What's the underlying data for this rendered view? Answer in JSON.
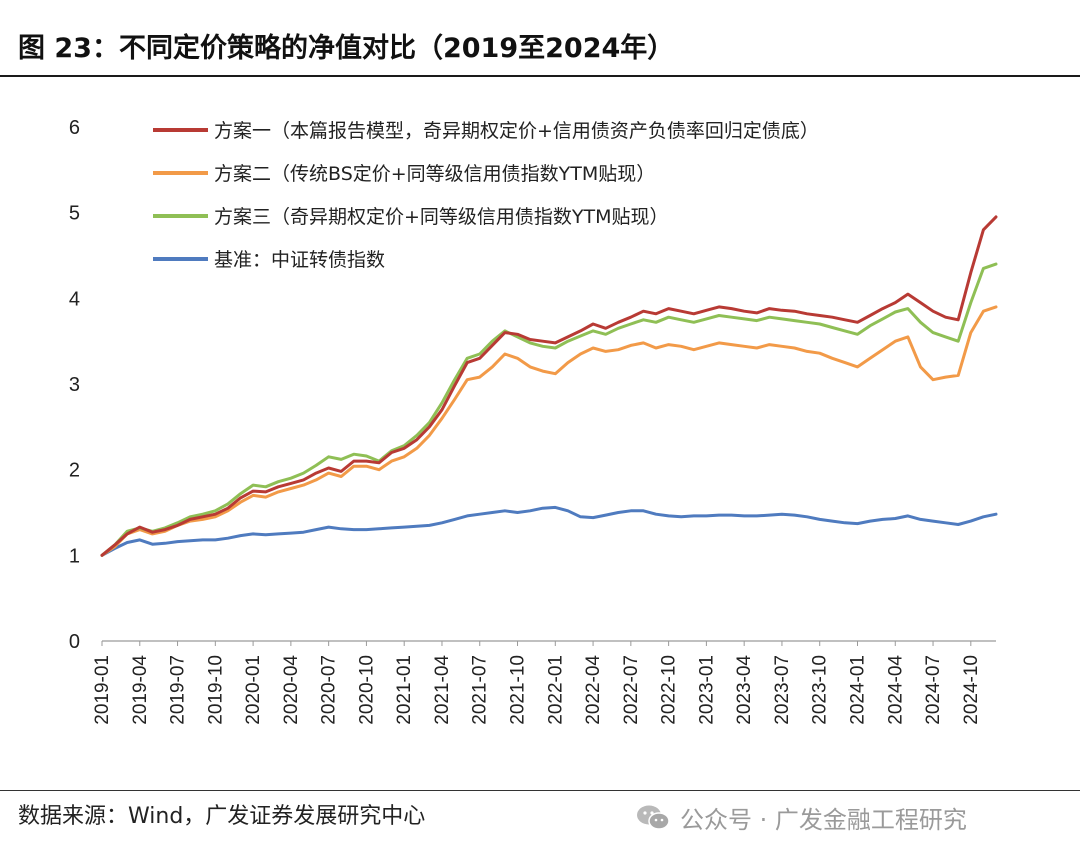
{
  "header": {
    "figure_title": "图 23：不同定价策略的净值对比（2019至2024年）"
  },
  "footer": {
    "source": "数据来源：Wind，广发证券发展研究中心",
    "watermark": "公众号 · 广发金融工程研究",
    "watermark_icon": "wechat-icon"
  },
  "colors": {
    "plan1": "#b83a34",
    "plan2": "#f29a48",
    "plan3": "#8fbf55",
    "benchmark": "#4f7bbf"
  },
  "chart_data": {
    "type": "line",
    "title": "",
    "xlabel": "",
    "ylabel": "",
    "ylim": [
      0,
      6
    ],
    "yticks": [
      "0",
      "1",
      "2",
      "3",
      "4",
      "5",
      "6"
    ],
    "xticks": [
      "2019-01",
      "2019-04",
      "2019-07",
      "2019-10",
      "2020-01",
      "2020-04",
      "2020-07",
      "2020-10",
      "2021-01",
      "2021-04",
      "2021-07",
      "2021-10",
      "2022-01",
      "2022-04",
      "2022-07",
      "2022-10",
      "2023-01",
      "2023-04",
      "2023-07",
      "2023-10",
      "2024-01",
      "2024-04",
      "2024-07",
      "2024-10"
    ],
    "grid": false,
    "legend_position": "top-left",
    "x": [
      "2019-01",
      "2019-02",
      "2019-03",
      "2019-04",
      "2019-05",
      "2019-06",
      "2019-07",
      "2019-08",
      "2019-09",
      "2019-10",
      "2019-11",
      "2019-12",
      "2020-01",
      "2020-02",
      "2020-03",
      "2020-04",
      "2020-05",
      "2020-06",
      "2020-07",
      "2020-08",
      "2020-09",
      "2020-10",
      "2020-11",
      "2020-12",
      "2021-01",
      "2021-02",
      "2021-03",
      "2021-04",
      "2021-05",
      "2021-06",
      "2021-07",
      "2021-08",
      "2021-09",
      "2021-10",
      "2021-11",
      "2021-12",
      "2022-01",
      "2022-02",
      "2022-03",
      "2022-04",
      "2022-05",
      "2022-06",
      "2022-07",
      "2022-08",
      "2022-09",
      "2022-10",
      "2022-11",
      "2022-12",
      "2023-01",
      "2023-02",
      "2023-03",
      "2023-04",
      "2023-05",
      "2023-06",
      "2023-07",
      "2023-08",
      "2023-09",
      "2023-10",
      "2023-11",
      "2023-12",
      "2024-01",
      "2024-02",
      "2024-03",
      "2024-04",
      "2024-05",
      "2024-06",
      "2024-07",
      "2024-08",
      "2024-09",
      "2024-10",
      "2024-11",
      "2024-12"
    ],
    "series": [
      {
        "name": "方案一（本篇报告模型，奇异期权定价+信用债资产负债率回归定债底）",
        "color": "#b83a34",
        "values": [
          1.0,
          1.12,
          1.25,
          1.33,
          1.27,
          1.3,
          1.35,
          1.42,
          1.45,
          1.48,
          1.55,
          1.67,
          1.75,
          1.74,
          1.8,
          1.84,
          1.88,
          1.96,
          2.02,
          1.98,
          2.1,
          2.1,
          2.08,
          2.2,
          2.25,
          2.35,
          2.5,
          2.7,
          2.98,
          3.25,
          3.3,
          3.45,
          3.6,
          3.58,
          3.52,
          3.5,
          3.48,
          3.55,
          3.62,
          3.7,
          3.65,
          3.72,
          3.78,
          3.85,
          3.82,
          3.88,
          3.85,
          3.82,
          3.86,
          3.9,
          3.88,
          3.85,
          3.83,
          3.88,
          3.86,
          3.85,
          3.82,
          3.8,
          3.78,
          3.75,
          3.72,
          3.8,
          3.88,
          3.95,
          4.05,
          3.95,
          3.85,
          3.78,
          3.75,
          4.3,
          4.8,
          4.95
        ]
      },
      {
        "name": "方案二（传统BS定价+同等级信用债指数YTM贴现）",
        "color": "#f29a48",
        "values": [
          1.0,
          1.1,
          1.25,
          1.3,
          1.25,
          1.28,
          1.35,
          1.4,
          1.42,
          1.45,
          1.52,
          1.62,
          1.7,
          1.68,
          1.74,
          1.78,
          1.82,
          1.88,
          1.96,
          1.92,
          2.04,
          2.04,
          2.0,
          2.1,
          2.15,
          2.25,
          2.4,
          2.6,
          2.82,
          3.05,
          3.08,
          3.2,
          3.35,
          3.3,
          3.2,
          3.15,
          3.12,
          3.25,
          3.35,
          3.42,
          3.38,
          3.4,
          3.45,
          3.48,
          3.42,
          3.46,
          3.44,
          3.4,
          3.44,
          3.48,
          3.46,
          3.44,
          3.42,
          3.46,
          3.44,
          3.42,
          3.38,
          3.36,
          3.3,
          3.25,
          3.2,
          3.3,
          3.4,
          3.5,
          3.55,
          3.2,
          3.05,
          3.08,
          3.1,
          3.6,
          3.85,
          3.9
        ]
      },
      {
        "name": "方案三（奇异期权定价+同等级信用债指数YTM贴现）",
        "color": "#8fbf55",
        "values": [
          1.0,
          1.12,
          1.28,
          1.32,
          1.28,
          1.32,
          1.38,
          1.45,
          1.48,
          1.52,
          1.6,
          1.72,
          1.82,
          1.8,
          1.86,
          1.9,
          1.96,
          2.05,
          2.15,
          2.12,
          2.18,
          2.16,
          2.1,
          2.22,
          2.28,
          2.4,
          2.55,
          2.78,
          3.05,
          3.3,
          3.35,
          3.5,
          3.62,
          3.55,
          3.48,
          3.44,
          3.42,
          3.5,
          3.56,
          3.62,
          3.58,
          3.65,
          3.7,
          3.75,
          3.72,
          3.78,
          3.75,
          3.72,
          3.76,
          3.8,
          3.78,
          3.76,
          3.74,
          3.78,
          3.76,
          3.74,
          3.72,
          3.7,
          3.66,
          3.62,
          3.58,
          3.68,
          3.76,
          3.84,
          3.88,
          3.72,
          3.6,
          3.55,
          3.5,
          3.95,
          4.35,
          4.4
        ]
      },
      {
        "name": "基准：中证转债指数",
        "color": "#4f7bbf",
        "values": [
          1.0,
          1.08,
          1.15,
          1.18,
          1.13,
          1.14,
          1.16,
          1.17,
          1.18,
          1.18,
          1.2,
          1.23,
          1.25,
          1.24,
          1.25,
          1.26,
          1.27,
          1.3,
          1.33,
          1.31,
          1.3,
          1.3,
          1.31,
          1.32,
          1.33,
          1.34,
          1.35,
          1.38,
          1.42,
          1.46,
          1.48,
          1.5,
          1.52,
          1.5,
          1.52,
          1.55,
          1.56,
          1.52,
          1.45,
          1.44,
          1.47,
          1.5,
          1.52,
          1.52,
          1.48,
          1.46,
          1.45,
          1.46,
          1.46,
          1.47,
          1.47,
          1.46,
          1.46,
          1.47,
          1.48,
          1.47,
          1.45,
          1.42,
          1.4,
          1.38,
          1.37,
          1.4,
          1.42,
          1.43,
          1.46,
          1.42,
          1.4,
          1.38,
          1.36,
          1.4,
          1.45,
          1.48
        ]
      }
    ]
  }
}
